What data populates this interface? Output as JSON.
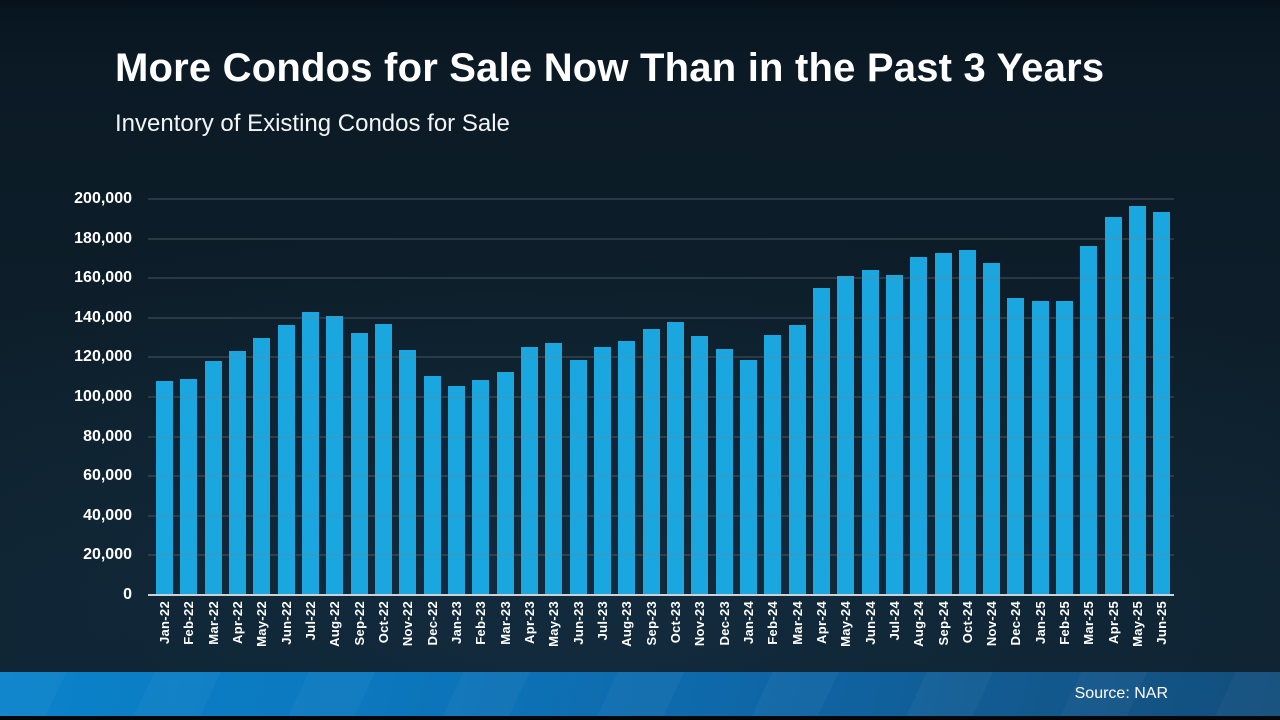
{
  "header": {
    "title": "More Condos for Sale Now Than in the Past 3 Years",
    "subtitle": "Inventory of Existing Condos for Sale"
  },
  "footer": {
    "source": "Source: NAR"
  },
  "colors": {
    "background_top": "#061019",
    "background_main": "#0d1f2b",
    "bar": "#1aa7e0",
    "gridline": "rgba(118,129,139,0.55)",
    "axis_line": "#c9d2d8",
    "text": "#ffffff",
    "footer_gradient_left": "#0a83cb",
    "footer_gradient_right": "#124e7c"
  },
  "chart_data": {
    "type": "bar",
    "title": "More Condos for Sale Now Than in the Past 3 Years",
    "subtitle": "Inventory of Existing Condos for Sale",
    "xlabel": "",
    "ylabel": "",
    "ylim": [
      0,
      200000
    ],
    "grid": true,
    "legend": false,
    "source": "Source: NAR",
    "categories": [
      "Jan-22",
      "Feb-22",
      "Mar-22",
      "Apr-22",
      "May-22",
      "Jun-22",
      "Jul-22",
      "Aug-22",
      "Sep-22",
      "Oct-22",
      "Nov-22",
      "Dec-22",
      "Jan-23",
      "Feb-23",
      "Mar-23",
      "Apr-23",
      "May-23",
      "Jun-23",
      "Jul-23",
      "Aug-23",
      "Sep-23",
      "Oct-23",
      "Nov-23",
      "Dec-23",
      "Jan-24",
      "Feb-24",
      "Mar-24",
      "Apr-24",
      "May-24",
      "Jun-24",
      "Jul-24",
      "Aug-24",
      "Sep-24",
      "Oct-24",
      "Nov-24",
      "Dec-24",
      "Jan-25",
      "Feb-25",
      "Mar-25",
      "Apr-25",
      "May-25",
      "Jun-25"
    ],
    "values": [
      108000,
      109000,
      118000,
      123000,
      130000,
      136500,
      143000,
      141000,
      132500,
      137000,
      123500,
      110500,
      105500,
      108500,
      112500,
      125500,
      127500,
      118500,
      125500,
      128500,
      134500,
      138000,
      131000,
      124000,
      118500,
      131500,
      136500,
      155000,
      161000,
      164000,
      161500,
      170500,
      172500,
      174500,
      167500,
      150000,
      148500,
      148500,
      176500,
      191000,
      196500,
      193500
    ],
    "y_ticks": [
      {
        "value": 0,
        "label": "0"
      },
      {
        "value": 20000,
        "label": "20,000"
      },
      {
        "value": 40000,
        "label": "40,000"
      },
      {
        "value": 60000,
        "label": "60,000"
      },
      {
        "value": 80000,
        "label": "80,000"
      },
      {
        "value": 100000,
        "label": "100,000"
      },
      {
        "value": 120000,
        "label": "120,000"
      },
      {
        "value": 140000,
        "label": "140,000"
      },
      {
        "value": 160000,
        "label": "160,000"
      },
      {
        "value": 180000,
        "label": "180,000"
      },
      {
        "value": 200000,
        "label": "200,000"
      }
    ]
  }
}
